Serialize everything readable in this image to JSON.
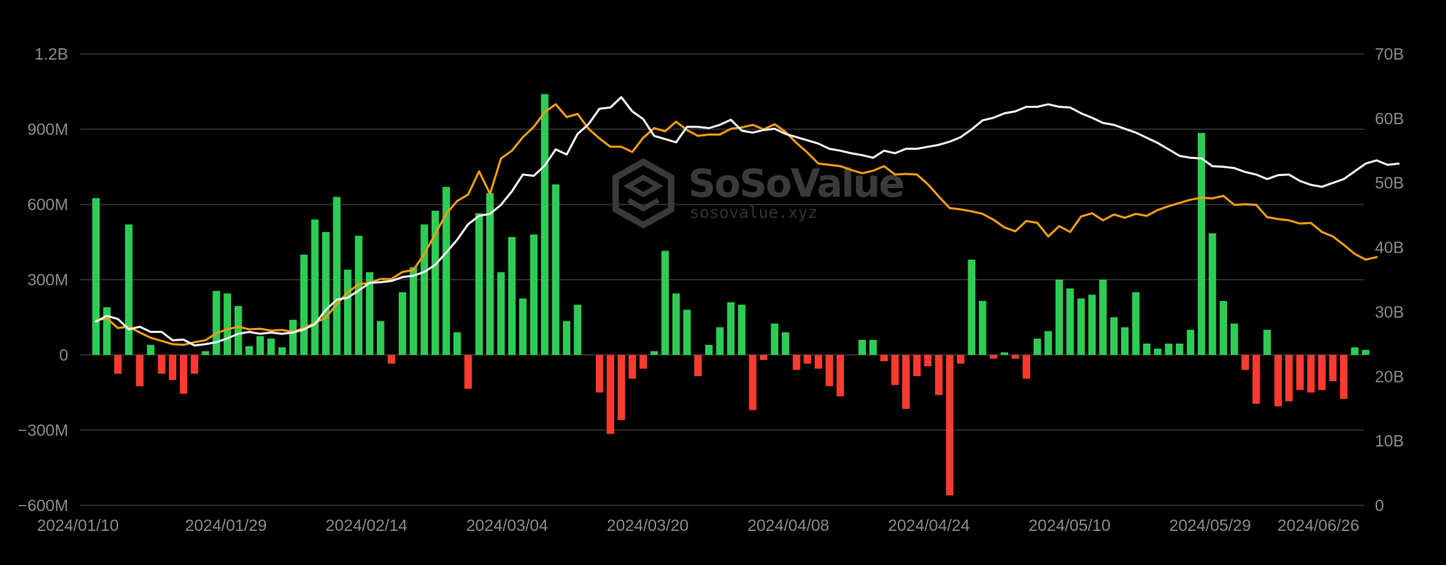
{
  "watermark": {
    "brand": "SoSoValue",
    "site": "sosovalue.xyz"
  },
  "chart_data": {
    "type": "bar",
    "x_tick_labels": [
      "2024/01/10",
      "2024/01/29",
      "2024/02/14",
      "2024/03/04",
      "2024/03/20",
      "2024/04/08",
      "2024/04/24",
      "2024/05/10",
      "2024/05/29",
      "2024/06/26"
    ],
    "left_axis": {
      "ticks": [
        "1.2B",
        "900M",
        "600M",
        "300M",
        "0",
        "−300M",
        "−600M"
      ],
      "ylim": [
        -600000000,
        1200000000
      ]
    },
    "right_axis": {
      "ticks": [
        "70B",
        "60B",
        "50B",
        "40B",
        "30B",
        "20B",
        "10B",
        "0"
      ],
      "ylim": [
        0,
        70000000000
      ]
    },
    "grid": true,
    "colors": {
      "inflow": "#2ecc55",
      "outflow": "#ff3b30",
      "white_line": "#f2f2f2",
      "orange_line": "#f39c12",
      "grid": "#3a3a3a",
      "tick": "#8a8a8a"
    },
    "series": [
      {
        "type": "bar",
        "axis": "left",
        "values": [
          625,
          190,
          -75,
          520,
          -125,
          40,
          -75,
          -100,
          -155,
          -75,
          15,
          255,
          245,
          195,
          35,
          75,
          65,
          30,
          140,
          400,
          540,
          490,
          630,
          340,
          475,
          330,
          135,
          -35,
          250,
          350,
          520,
          575,
          670,
          90,
          -135,
          565,
          645,
          330,
          470,
          225,
          480,
          1040,
          680,
          135,
          200,
          0,
          -150,
          -315,
          -260,
          -95,
          -55,
          15,
          415,
          245,
          180,
          -85,
          40,
          110,
          210,
          200,
          -220,
          -20,
          125,
          90,
          -60,
          -35,
          -55,
          -125,
          -165,
          0,
          60,
          60,
          -25,
          -120,
          -215,
          -85,
          -45,
          -160,
          -560,
          -35,
          380,
          215,
          -15,
          10,
          -15,
          -95,
          65,
          95,
          300,
          265,
          225,
          240,
          300,
          150,
          110,
          250,
          45,
          25,
          45,
          45,
          100,
          885,
          485,
          215,
          125,
          -60,
          -195,
          100,
          -205,
          -185,
          -140,
          -150,
          -140,
          -105,
          -175,
          30,
          20
        ]
      },
      {
        "type": "line",
        "axis": "right",
        "values": [
          28.7,
          29.0,
          27.5,
          27.7,
          26.8,
          26.0,
          25.5,
          25.0,
          24.9,
          25.3,
          25.6,
          26.7,
          27.3,
          27.7,
          27.3,
          27.4,
          27.1,
          27.2,
          26.9,
          27.5,
          28.3,
          29.1,
          31.2,
          33.0,
          34.3,
          34.5,
          35.1,
          35.1,
          36.2,
          36.5,
          39.0,
          42.1,
          45.2,
          47.2,
          48.2,
          51.8,
          48.3,
          53.8,
          55.0,
          57.1,
          58.7,
          61.0,
          62.2,
          60.2,
          60.7,
          58.4,
          56.9,
          55.6,
          55.6,
          54.8,
          57.0,
          58.5,
          58.0,
          59.5,
          58.2,
          57.3,
          57.5,
          57.5,
          58.4,
          58.6,
          59.0,
          58.3,
          59.1,
          57.9,
          56.2,
          54.7,
          53.0,
          52.8,
          52.6,
          52.0,
          51.5,
          51.9,
          52.6,
          51.3,
          51.4,
          51.3,
          49.8,
          47.9,
          46.1,
          45.9,
          45.6,
          45.2,
          44.3,
          43.1,
          42.5,
          44.1,
          43.8,
          41.7,
          43.3,
          42.4,
          44.8,
          45.3,
          44.2,
          45.1,
          44.6,
          45.2,
          44.9,
          45.8,
          46.4,
          46.9,
          47.4,
          47.7,
          47.6,
          48.0,
          46.6,
          46.7,
          46.6,
          44.7,
          44.4,
          44.2,
          43.7,
          43.8,
          42.4,
          41.7,
          40.4,
          39.0,
          38.1,
          38.5
        ]
      },
      {
        "type": "line",
        "axis": "right",
        "values": [
          28.5,
          29.4,
          28.9,
          27.3,
          27.7,
          26.9,
          26.9,
          25.6,
          25.7,
          24.8,
          25.0,
          25.3,
          25.9,
          26.6,
          26.9,
          26.6,
          26.8,
          26.6,
          26.8,
          27.3,
          28.1,
          30.3,
          31.9,
          32.2,
          33.3,
          34.5,
          34.6,
          34.8,
          35.4,
          35.6,
          36.2,
          37.3,
          39.2,
          41.2,
          43.6,
          44.9,
          45.2,
          46.6,
          48.7,
          51.3,
          51.1,
          52.7,
          55.2,
          54.4,
          57.6,
          59.1,
          61.5,
          61.7,
          63.3,
          61.1,
          59.9,
          57.3,
          56.8,
          56.3,
          58.7,
          58.7,
          58.5,
          59.0,
          59.8,
          58.1,
          57.8,
          58.2,
          58.4,
          57.6,
          57.1,
          56.6,
          56.1,
          55.3,
          55.0,
          54.6,
          54.3,
          53.9,
          55.0,
          54.6,
          55.3,
          55.3,
          55.6,
          55.9,
          56.4,
          57.1,
          58.3,
          59.7,
          60.1,
          60.8,
          61.1,
          61.8,
          61.8,
          62.2,
          61.8,
          61.7,
          60.8,
          60.1,
          59.3,
          59.0,
          58.4,
          57.8,
          57.0,
          56.2,
          55.2,
          54.2,
          53.9,
          53.8,
          52.6,
          52.5,
          52.3,
          51.7,
          51.3,
          50.6,
          51.2,
          51.3,
          50.3,
          49.7,
          49.4,
          50.0,
          50.6,
          51.8,
          53.0,
          53.5,
          52.8,
          53.0
        ]
      }
    ]
  }
}
